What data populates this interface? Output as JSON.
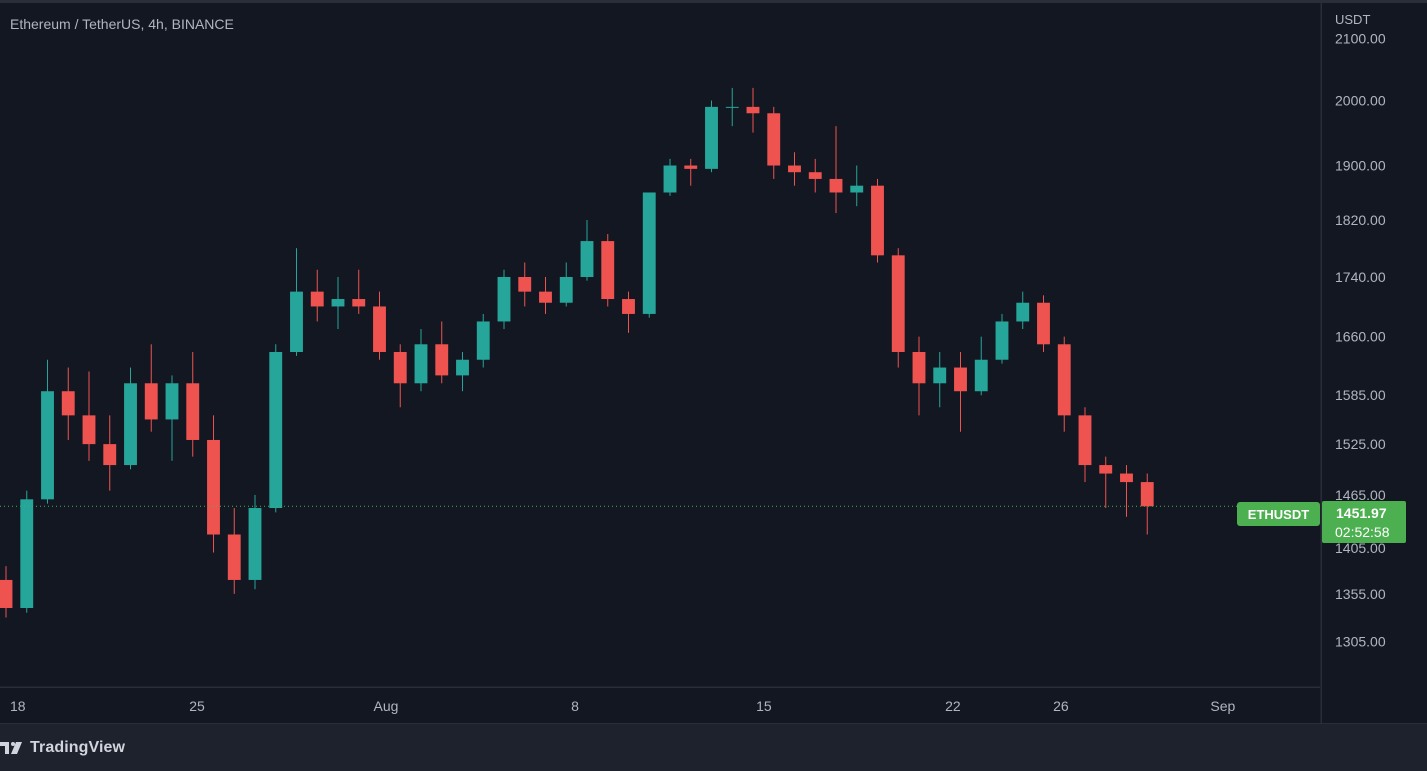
{
  "header": {
    "title": "Ethereum / TetherUS, 4h, BINANCE"
  },
  "price_axis": {
    "currency": "USDT"
  },
  "last_price": {
    "symbol": "ETHUSDT",
    "price": "1451.97",
    "countdown": "02:52:58",
    "value": 1451.97,
    "color": "#4caf50"
  },
  "footer": {
    "brand": "TradingView"
  },
  "colors": {
    "up": "#26a69a",
    "down": "#ef5350",
    "background": "#131722",
    "text": "#b2b5be"
  },
  "chart_data": {
    "type": "candlestick",
    "y_scale": "log",
    "ylim": [
      1260,
      2160
    ],
    "y_ticks": [
      "2100.00",
      "2000.00",
      "1900.00",
      "1820.00",
      "1740.00",
      "1660.00",
      "1585.00",
      "1525.00",
      "1465.00",
      "1405.00",
      "1355.00",
      "1305.00"
    ],
    "x_ticks": [
      {
        "label": "18",
        "x": 0
      },
      {
        "label": "25",
        "x": 7
      },
      {
        "label": "Aug",
        "x": 14
      },
      {
        "label": "8",
        "x": 21
      },
      {
        "label": "15",
        "x": 28
      },
      {
        "label": "22",
        "x": 35
      },
      {
        "label": "26",
        "x": 39
      },
      {
        "label": "Sep",
        "x": 45
      }
    ],
    "xlim": [
      -0.3,
      48.6
    ],
    "x_units": "days since July 18",
    "ohlc": [
      [
        1370,
        1385,
        1330,
        1340
      ],
      [
        1340,
        1470,
        1335,
        1460
      ],
      [
        1460,
        1630,
        1455,
        1590
      ],
      [
        1590,
        1620,
        1530,
        1560
      ],
      [
        1560,
        1615,
        1505,
        1525
      ],
      [
        1525,
        1560,
        1470,
        1500
      ],
      [
        1500,
        1620,
        1495,
        1600
      ],
      [
        1600,
        1650,
        1540,
        1555
      ],
      [
        1555,
        1610,
        1505,
        1600
      ],
      [
        1600,
        1640,
        1510,
        1530
      ],
      [
        1530,
        1560,
        1400,
        1420
      ],
      [
        1420,
        1450,
        1355,
        1370
      ],
      [
        1370,
        1465,
        1360,
        1450
      ],
      [
        1450,
        1650,
        1445,
        1640
      ],
      [
        1640,
        1780,
        1635,
        1720
      ],
      [
        1720,
        1750,
        1680,
        1700
      ],
      [
        1700,
        1740,
        1670,
        1710
      ],
      [
        1710,
        1750,
        1690,
        1700
      ],
      [
        1700,
        1720,
        1630,
        1640
      ],
      [
        1640,
        1650,
        1570,
        1600
      ],
      [
        1600,
        1670,
        1590,
        1650
      ],
      [
        1650,
        1680,
        1600,
        1610
      ],
      [
        1610,
        1640,
        1590,
        1630
      ],
      [
        1630,
        1690,
        1620,
        1680
      ],
      [
        1680,
        1750,
        1670,
        1740
      ],
      [
        1740,
        1760,
        1700,
        1720
      ],
      [
        1720,
        1740,
        1690,
        1705
      ],
      [
        1705,
        1760,
        1700,
        1740
      ],
      [
        1740,
        1820,
        1735,
        1790
      ],
      [
        1790,
        1800,
        1700,
        1710
      ],
      [
        1710,
        1720,
        1665,
        1690
      ],
      [
        1690,
        1860,
        1685,
        1860
      ],
      [
        1860,
        1910,
        1855,
        1900
      ],
      [
        1900,
        1910,
        1870,
        1895
      ],
      [
        1895,
        2000,
        1890,
        1990
      ],
      [
        1990,
        2020,
        1960,
        1990
      ],
      [
        1990,
        2020,
        1950,
        1980
      ],
      [
        1980,
        1990,
        1880,
        1900
      ],
      [
        1900,
        1920,
        1870,
        1890
      ],
      [
        1890,
        1910,
        1860,
        1880
      ],
      [
        1880,
        1960,
        1830,
        1860
      ],
      [
        1860,
        1900,
        1840,
        1870
      ],
      [
        1870,
        1880,
        1760,
        1770
      ],
      [
        1770,
        1780,
        1620,
        1640
      ],
      [
        1640,
        1660,
        1560,
        1600
      ],
      [
        1600,
        1640,
        1570,
        1620
      ],
      [
        1620,
        1640,
        1540,
        1590
      ],
      [
        1590,
        1660,
        1585,
        1630
      ],
      [
        1630,
        1690,
        1625,
        1680
      ],
      [
        1680,
        1720,
        1670,
        1705
      ],
      [
        1705,
        1715,
        1640,
        1650
      ],
      [
        1650,
        1660,
        1540,
        1560
      ],
      [
        1560,
        1570,
        1480,
        1500
      ],
      [
        1500,
        1510,
        1450,
        1490
      ],
      [
        1490,
        1500,
        1440,
        1480
      ],
      [
        1480,
        1490,
        1420,
        1452
      ]
    ]
  }
}
